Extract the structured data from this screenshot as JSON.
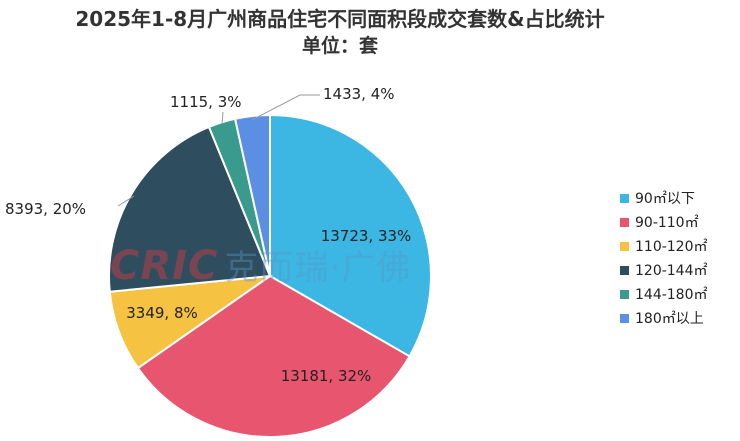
{
  "title": "2025年1-8月广州商品住宅不同面积段成交套数&占比统计",
  "subtitle": "单位：套",
  "watermark": {
    "brand": "CRIC",
    "text": "克而瑞·广佛"
  },
  "chart_data": {
    "type": "pie",
    "title": "2025年1-8月广州商品住宅不同面积段成交套数&占比统计",
    "subtitle": "单位：套",
    "legend_position": "right",
    "start_angle_deg": 0,
    "direction": "clockwise",
    "slices": [
      {
        "name": "90㎡以下",
        "value": 13723,
        "percent": 33,
        "label": "13723, 33%",
        "color": "#3cb6e3"
      },
      {
        "name": "90-110㎡",
        "value": 13181,
        "percent": 32,
        "label": "13181, 32%",
        "color": "#e8556e"
      },
      {
        "name": "110-120㎡",
        "value": 3349,
        "percent": 8,
        "label": "3349, 8%",
        "color": "#f5c242"
      },
      {
        "name": "120-144㎡",
        "value": 8393,
        "percent": 20,
        "label": "8393, 20%",
        "color": "#2e4d5e"
      },
      {
        "name": "144-180㎡",
        "value": 1115,
        "percent": 3,
        "label": "1115, 3%",
        "color": "#3a9a8e"
      },
      {
        "name": "180㎡以上",
        "value": 1433,
        "percent": 4,
        "label": "1433, 4%",
        "color": "#5b8fe3"
      }
    ]
  }
}
